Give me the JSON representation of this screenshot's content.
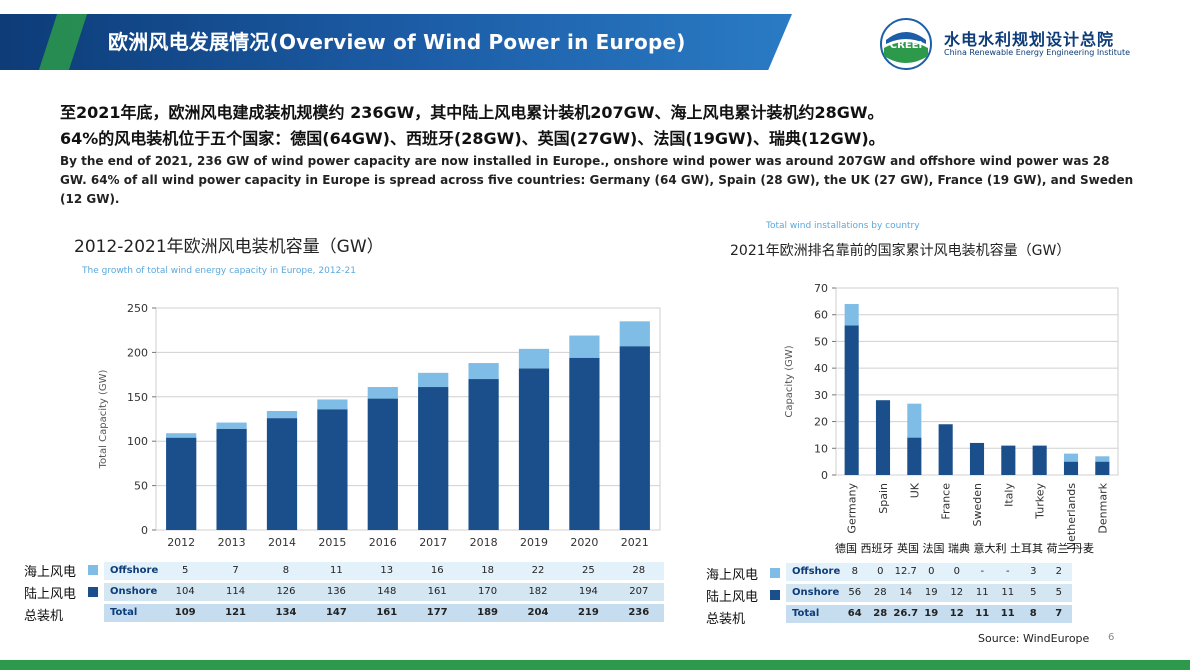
{
  "header": {
    "title": "欧洲风电发展情况(Overview of Wind Power in Europe)",
    "logo_text_cn": "水电水利规划设计总院",
    "logo_text_en": "China Renewable Energy Engineering Institute",
    "logo_badge": "CREEI"
  },
  "intro": {
    "line_cn_1": "至2021年底，欧洲风电建成装机规模约 236GW，其中陆上风电累计装机207GW、海上风电累计装机约28GW。",
    "line_cn_2": "64%的风电装机位于五个国家：德国(64GW)、西班牙(28GW)、英国(27GW)、法国(19GW)、瑞典(12GW)。",
    "text_en": "By the end of 2021, 236 GW of wind power capacity are now installed in Europe., onshore wind power was around 207GW and offshore wind power was 28 GW. 64% of all wind power capacity in Europe is spread across five countries: Germany (64 GW), Spain (28 GW), the UK (27 GW), France (19 GW), and Sweden (12 GW)."
  },
  "colors": {
    "onshore": "#1b4f8c",
    "offshore": "#7fbde6",
    "row_offshore": "#e3f1fa",
    "row_onshore": "#d5e6f3",
    "row_total": "#c6ddef"
  },
  "legend": {
    "offshore_cn": "海上风电",
    "onshore_cn": "陆上风电",
    "total_cn": "总装机",
    "offshore_en": "Offshore",
    "onshore_en": "Onshore",
    "total_en": "Total"
  },
  "chart_data": [
    {
      "type": "bar",
      "stacked": true,
      "title": "2012-2021年欧洲风电装机容量（GW）",
      "subtitle": "The growth of total wind energy capacity in Europe, 2012-21",
      "ylabel": "Total Capacity (GW)",
      "xlabel": "",
      "ylim": [
        0,
        250
      ],
      "yticks": [
        0,
        50,
        100,
        150,
        200,
        250
      ],
      "categories": [
        "2012",
        "2013",
        "2014",
        "2015",
        "2016",
        "2017",
        "2018",
        "2019",
        "2020",
        "2021"
      ],
      "series": [
        {
          "name": "Onshore",
          "values": [
            104,
            114,
            126,
            136,
            148,
            161,
            170,
            182,
            194,
            207
          ]
        },
        {
          "name": "Offshore",
          "values": [
            5,
            7,
            8,
            11,
            13,
            16,
            18,
            22,
            25,
            28
          ]
        }
      ],
      "table": {
        "offshore": [
          "5",
          "7",
          "8",
          "11",
          "13",
          "16",
          "18",
          "22",
          "25",
          "28"
        ],
        "onshore": [
          "104",
          "114",
          "126",
          "136",
          "148",
          "161",
          "170",
          "182",
          "194",
          "207"
        ],
        "total": [
          "109",
          "121",
          "134",
          "147",
          "161",
          "177",
          "189",
          "204",
          "219",
          "236"
        ]
      }
    },
    {
      "type": "bar",
      "stacked": true,
      "title": "2021年欧洲排名靠前的国家累计风电装机容量（GW）",
      "subtitle": "Total wind installations by country",
      "ylabel": "Capacity (GW)",
      "xlabel": "",
      "ylim": [
        0,
        70
      ],
      "yticks": [
        0,
        10,
        20,
        30,
        40,
        50,
        60,
        70
      ],
      "categories": [
        "Germany",
        "Spain",
        "UK",
        "France",
        "Sweden",
        "Italy",
        "Turkey",
        "Netherlands",
        "Denmark"
      ],
      "categories_cn": "德国 西班牙 英国 法国 瑞典 意大利 土耳其 荷兰 丹麦",
      "series": [
        {
          "name": "Onshore",
          "values": [
            56,
            28,
            14,
            19,
            12,
            11,
            11,
            5,
            5
          ]
        },
        {
          "name": "Offshore",
          "values": [
            8,
            0,
            12.7,
            0,
            0,
            0,
            0,
            3,
            2
          ]
        }
      ],
      "table": {
        "offshore": [
          "8",
          "0",
          "12.7",
          "0",
          "0",
          "-",
          "-",
          "3",
          "2"
        ],
        "onshore": [
          "56",
          "28",
          "14",
          "19",
          "12",
          "11",
          "11",
          "5",
          "5"
        ],
        "total": [
          "64",
          "28",
          "26.7",
          "19",
          "12",
          "11",
          "11",
          "8",
          "7"
        ]
      }
    }
  ],
  "footer": {
    "source": "Source: WindEurope",
    "page": "6"
  }
}
